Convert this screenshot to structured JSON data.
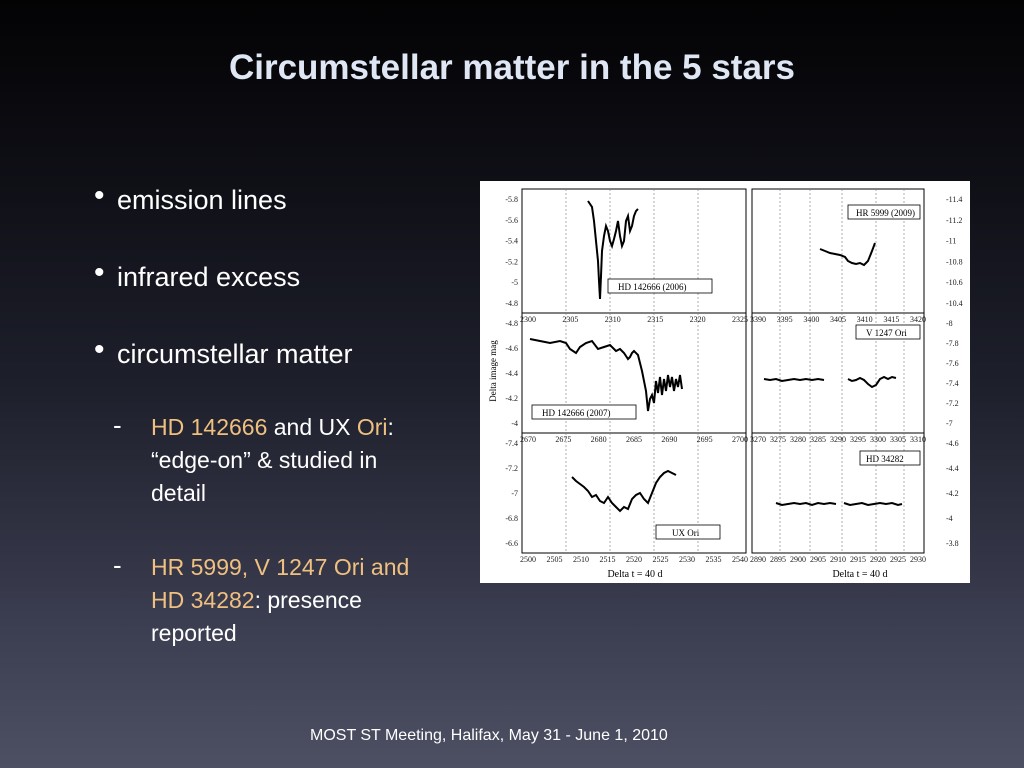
{
  "slide": {
    "title": "Circumstellar matter in the 5 stars",
    "bullets": [
      {
        "text": "emission lines"
      },
      {
        "text": "infrared excess"
      },
      {
        "text": "circumstellar matter"
      }
    ],
    "sub_bullets": [
      {
        "a": "HD 142666",
        "b": " and UX ",
        "c": "Ori",
        "d": ": “edge-on” & studied in detail"
      },
      {
        "a": "HR 5999, V 1247 Ori",
        "b": " and HD 34282",
        "c": ":",
        "d": " presence reported"
      }
    ],
    "footer": "MOST ST Meeting, Halifax, May 31 - June 1, 2010"
  },
  "figure": {
    "ylabel": "Delta image mag",
    "xlabel_left": "Delta t = 40 d",
    "xlabel_right": "Delta t = 40 d",
    "panels": [
      {
        "legend": "HD 142666 (2006)",
        "xticks": [
          "2300",
          "2305",
          "2310",
          "2315",
          "2320",
          "2325"
        ],
        "yticks": [
          "-5.8",
          "-5.6",
          "-5.4",
          "-5.2",
          "-5",
          "-4.8"
        ]
      },
      {
        "legend": "HR 5999 (2009)",
        "xticks": [
          "3390",
          "3395",
          "3400",
          "3405",
          "3410",
          "3415",
          "3420"
        ],
        "yticks": [
          "-11.4",
          "-11.2",
          "-11",
          "-10.8",
          "-10.6",
          "-10.4"
        ]
      },
      {
        "legend": "HD 142666 (2007)",
        "xticks": [
          "2670",
          "2675",
          "2680",
          "2685",
          "2690",
          "2695",
          "2700"
        ],
        "yticks": [
          "-4.8",
          "-4.6",
          "-4.4",
          "-4.2",
          "-4"
        ]
      },
      {
        "legend": "V 1247 Ori",
        "xticks": [
          "3270",
          "3275",
          "3280",
          "3285",
          "3290",
          "3295",
          "3300",
          "3305",
          "3310"
        ],
        "yticks": [
          "-8",
          "-7.8",
          "-7.6",
          "-7.4",
          "-7.2",
          "-7"
        ]
      },
      {
        "legend": "UX Ori",
        "xticks": [
          "2500",
          "2505",
          "2510",
          "2515",
          "2520",
          "2525",
          "2530",
          "2535",
          "2540"
        ],
        "yticks": [
          "-7.4",
          "-7.2",
          "-7",
          "-6.8",
          "-6.6"
        ]
      },
      {
        "legend": "HD 34282",
        "xticks": [
          "2890",
          "2895",
          "2900",
          "2905",
          "2910",
          "2915",
          "2920",
          "2925",
          "2930"
        ],
        "yticks": [
          "-4.6",
          "-4.4",
          "-4.2",
          "-4",
          "-3.8"
        ]
      }
    ]
  }
}
